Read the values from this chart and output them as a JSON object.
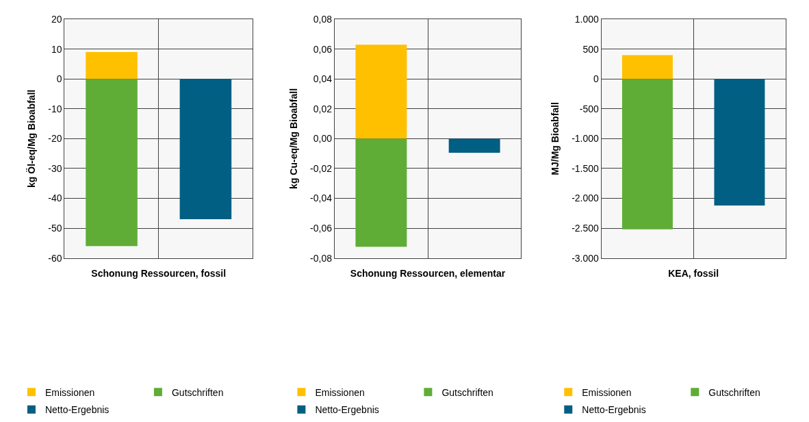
{
  "chart_data": [
    {
      "type": "bar",
      "stacked": true,
      "xlabel": "Schonung Ressourcen, fossil",
      "ylabel": "kg Öl-eq/Mg Bioabfall",
      "categories": [
        null,
        null
      ],
      "grid": true,
      "legend": "bottom",
      "ylim": [
        -60,
        20
      ],
      "yticks": [
        -60,
        -50,
        -40,
        -30,
        -20,
        -10,
        0,
        10,
        20
      ],
      "series": [
        {
          "name": "Emissionen",
          "color": "#ffc000",
          "values": [
            9,
            null
          ]
        },
        {
          "name": "Gutschriften",
          "color": "#5fad36",
          "values": [
            -56,
            null
          ]
        },
        {
          "name": "Netto-Ergebnis",
          "color": "#005f83",
          "values": [
            null,
            -47
          ]
        }
      ]
    },
    {
      "type": "bar",
      "stacked": true,
      "xlabel": "Schonung Ressourcen, elementar",
      "ylabel": "kg Cu-eq/Mg Bioabfall",
      "categories": [
        null,
        null
      ],
      "grid": true,
      "legend": "bottom",
      "ylim": [
        -0.08,
        0.08
      ],
      "yticks": [
        {
          "value": -0.08,
          "label": "-0,08"
        },
        {
          "value": -0.06,
          "label": "-0,06"
        },
        {
          "value": -0.04,
          "label": "-0,04"
        },
        {
          "value": -0.02,
          "label": "-0,02"
        },
        {
          "value": 0,
          "label": "0,00"
        },
        {
          "value": 0.02,
          "label": "0,02"
        },
        {
          "value": 0.04,
          "label": "0,04"
        },
        {
          "value": 0.06,
          "label": "0,06"
        },
        {
          "value": 0.08,
          "label": "0,08"
        }
      ],
      "series": [
        {
          "name": "Emissionen",
          "color": "#ffc000",
          "values": [
            0.063,
            null
          ]
        },
        {
          "name": "Gutschriften",
          "color": "#5fad36",
          "values": [
            -0.0725,
            null
          ]
        },
        {
          "name": "Netto-Ergebnis",
          "color": "#005f83",
          "values": [
            null,
            -0.0095
          ]
        }
      ]
    },
    {
      "type": "bar",
      "stacked": true,
      "xlabel": "KEA, fossil",
      "ylabel": "MJ/Mg Bioabfall",
      "categories": [
        null,
        null
      ],
      "grid": true,
      "legend": "bottom",
      "ylim": [
        -3000,
        1000
      ],
      "yticks": [
        {
          "value": -3000,
          "label": "-3.000"
        },
        {
          "value": -2500,
          "label": "-2.500"
        },
        {
          "value": -2000,
          "label": "-2.000"
        },
        {
          "value": -1500,
          "label": "-1.500"
        },
        {
          "value": -1000,
          "label": "-1.000"
        },
        -500,
        0,
        500,
        {
          "value": 1000,
          "label": "1.000"
        }
      ],
      "series": [
        {
          "name": "Emissionen",
          "color": "#ffc000",
          "values": [
            400,
            null
          ]
        },
        {
          "name": "Gutschriften",
          "color": "#5fad36",
          "values": [
            -2520,
            null
          ]
        },
        {
          "name": "Netto-Ergebnis",
          "color": "#005f83",
          "values": [
            null,
            -2120
          ]
        }
      ]
    }
  ]
}
